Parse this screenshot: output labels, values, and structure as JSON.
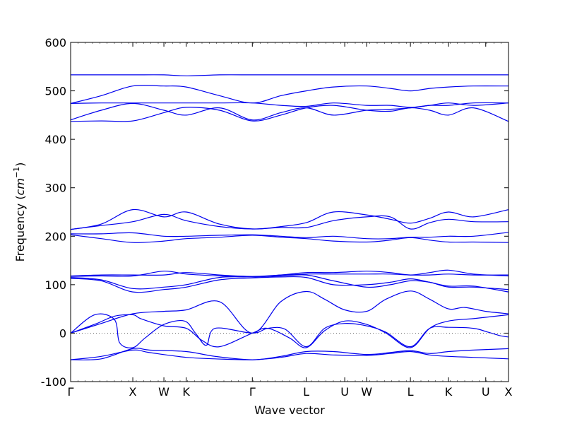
{
  "chart_data": {
    "type": "line",
    "title": "",
    "xlabel": "Wave vector",
    "ylabel": "Frequency (cm⁻¹)",
    "ylabel_parts": {
      "prefix": "Frequency (",
      "unit_base": "cm",
      "unit_exp": "−1",
      "suffix": ")"
    },
    "ylim": [
      -100,
      600
    ],
    "yticks": [
      -100,
      0,
      100,
      200,
      300,
      400,
      500,
      600
    ],
    "xlim": [
      0,
      1
    ],
    "high_symmetry_points": [
      {
        "label": "Γ",
        "x": 0.0
      },
      {
        "label": "X",
        "x": 0.142
      },
      {
        "label": "W",
        "x": 0.213
      },
      {
        "label": "K",
        "x": 0.264
      },
      {
        "label": "Γ",
        "x": 0.415
      },
      {
        "label": "L",
        "x": 0.538
      },
      {
        "label": "U",
        "x": 0.626
      },
      {
        "label": "W",
        "x": 0.676
      },
      {
        "label": "L",
        "x": 0.776
      },
      {
        "label": "K",
        "x": 0.863
      },
      {
        "label": "U",
        "x": 0.948
      },
      {
        "label": "X",
        "x": 1.0
      }
    ],
    "zero_line": {
      "y": 0,
      "style": "dotted"
    },
    "grid": false,
    "legend": false,
    "series_color": "#0000ee",
    "series": [
      {
        "x": [
          0.0,
          0.07,
          0.142,
          0.18,
          0.264,
          0.33,
          0.415,
          0.48,
          0.538,
          0.6,
          0.676,
          0.73,
          0.776,
          0.82,
          0.863,
          0.92,
          1.0
        ],
        "y": [
          -55,
          -53,
          -32,
          -35,
          -38,
          -48,
          -55,
          -48,
          -38,
          -38,
          -44,
          -40,
          -36,
          -42,
          -38,
          -35,
          -32
        ]
      },
      {
        "x": [
          0.0,
          0.07,
          0.142,
          0.18,
          0.264,
          0.33,
          0.415,
          0.48,
          0.538,
          0.6,
          0.676,
          0.73,
          0.776,
          0.82,
          0.863,
          0.92,
          1.0
        ],
        "y": [
          -55,
          -48,
          -35,
          -40,
          -50,
          -53,
          -55,
          -50,
          -42,
          -45,
          -46,
          -42,
          -38,
          -45,
          -48,
          -50,
          -53
        ]
      },
      {
        "x": [
          0.0,
          0.06,
          0.1,
          0.142,
          0.16,
          0.213,
          0.264,
          0.3,
          0.34,
          0.415,
          0.45,
          0.5,
          0.538,
          0.58,
          0.626,
          0.676,
          0.72,
          0.776,
          0.82,
          0.863,
          0.92,
          1.0
        ],
        "y": [
          0,
          20,
          35,
          38,
          30,
          15,
          10,
          -15,
          -28,
          0,
          10,
          -10,
          -30,
          5,
          25,
          18,
          0,
          -30,
          10,
          25,
          30,
          38
        ]
      },
      {
        "x": [
          0.0,
          0.055,
          0.1,
          0.112,
          0.142,
          0.17,
          0.213,
          0.26,
          0.285,
          0.31,
          0.33,
          0.415,
          0.45,
          0.49,
          0.538,
          0.58,
          0.626,
          0.676,
          0.72,
          0.776,
          0.82,
          0.863,
          0.92,
          0.95,
          0.98,
          1.0
        ],
        "y": [
          0,
          38,
          28,
          -20,
          -30,
          -10,
          18,
          25,
          0,
          -25,
          10,
          0,
          10,
          8,
          -28,
          10,
          20,
          15,
          2,
          -28,
          10,
          12,
          10,
          3,
          -5,
          -8
        ]
      },
      {
        "x": [
          0.0,
          0.07,
          0.142,
          0.213,
          0.264,
          0.34,
          0.415,
          0.48,
          0.538,
          0.58,
          0.626,
          0.676,
          0.72,
          0.776,
          0.82,
          0.863,
          0.9,
          0.948,
          1.0
        ],
        "y": [
          0,
          20,
          40,
          45,
          48,
          65,
          0,
          65,
          86,
          70,
          48,
          45,
          70,
          87,
          70,
          50,
          53,
          45,
          40
        ]
      },
      {
        "x": [
          0.0,
          0.07,
          0.142,
          0.213,
          0.264,
          0.34,
          0.415,
          0.48,
          0.538,
          0.6,
          0.676,
          0.73,
          0.776,
          0.82,
          0.863,
          0.92,
          1.0
        ],
        "y": [
          115,
          110,
          92,
          95,
          100,
          115,
          116,
          118,
          120,
          108,
          95,
          100,
          108,
          105,
          95,
          95,
          90
        ]
      },
      {
        "x": [
          0.0,
          0.07,
          0.142,
          0.213,
          0.264,
          0.34,
          0.415,
          0.48,
          0.538,
          0.6,
          0.676,
          0.73,
          0.776,
          0.82,
          0.863,
          0.92,
          1.0
        ],
        "y": [
          113,
          108,
          85,
          90,
          95,
          110,
          114,
          116,
          115,
          100,
          100,
          105,
          112,
          105,
          97,
          97,
          85
        ]
      },
      {
        "x": [
          0.0,
          0.07,
          0.142,
          0.213,
          0.264,
          0.34,
          0.415,
          0.48,
          0.538,
          0.6,
          0.676,
          0.73,
          0.776,
          0.82,
          0.863,
          0.92,
          1.0
        ],
        "y": [
          117,
          118,
          118,
          128,
          122,
          118,
          116,
          120,
          125,
          125,
          128,
          125,
          120,
          125,
          130,
          122,
          118
        ]
      },
      {
        "x": [
          0.0,
          0.07,
          0.142,
          0.213,
          0.264,
          0.34,
          0.415,
          0.48,
          0.538,
          0.6,
          0.676,
          0.73,
          0.776,
          0.82,
          0.863,
          0.92,
          1.0
        ],
        "y": [
          118,
          120,
          120,
          120,
          125,
          120,
          117,
          120,
          122,
          122,
          122,
          122,
          120,
          120,
          122,
          120,
          120
        ]
      },
      {
        "x": [
          0.0,
          0.07,
          0.142,
          0.213,
          0.264,
          0.34,
          0.415,
          0.48,
          0.538,
          0.6,
          0.676,
          0.73,
          0.776,
          0.82,
          0.863,
          0.92,
          1.0
        ],
        "y": [
          203,
          195,
          187,
          190,
          195,
          198,
          202,
          198,
          195,
          190,
          188,
          192,
          197,
          192,
          188,
          188,
          187
        ]
      },
      {
        "x": [
          0.0,
          0.07,
          0.142,
          0.213,
          0.264,
          0.34,
          0.415,
          0.48,
          0.538,
          0.6,
          0.676,
          0.73,
          0.776,
          0.82,
          0.863,
          0.92,
          1.0
        ],
        "y": [
          205,
          205,
          207,
          200,
          200,
          202,
          203,
          200,
          197,
          200,
          195,
          195,
          198,
          198,
          200,
          200,
          208
        ]
      },
      {
        "x": [
          0.0,
          0.07,
          0.142,
          0.213,
          0.264,
          0.34,
          0.415,
          0.48,
          0.538,
          0.6,
          0.676,
          0.73,
          0.776,
          0.82,
          0.863,
          0.92,
          1.0
        ],
        "y": [
          214,
          225,
          255,
          240,
          250,
          225,
          215,
          220,
          228,
          250,
          244,
          235,
          227,
          237,
          250,
          240,
          255
        ]
      },
      {
        "x": [
          0.0,
          0.07,
          0.142,
          0.213,
          0.264,
          0.34,
          0.415,
          0.48,
          0.538,
          0.6,
          0.676,
          0.73,
          0.776,
          0.82,
          0.863,
          0.92,
          1.0
        ],
        "y": [
          214,
          222,
          230,
          245,
          232,
          220,
          215,
          218,
          218,
          232,
          240,
          240,
          215,
          228,
          235,
          230,
          230
        ]
      },
      {
        "x": [
          0.0,
          0.07,
          0.142,
          0.213,
          0.264,
          0.34,
          0.415,
          0.48,
          0.538,
          0.6,
          0.676,
          0.73,
          0.776,
          0.82,
          0.863,
          0.92,
          1.0
        ],
        "y": [
          437,
          438,
          438,
          455,
          466,
          460,
          438,
          450,
          465,
          470,
          460,
          458,
          465,
          460,
          450,
          465,
          437
        ]
      },
      {
        "x": [
          0.0,
          0.07,
          0.142,
          0.213,
          0.264,
          0.34,
          0.415,
          0.48,
          0.538,
          0.6,
          0.676,
          0.73,
          0.776,
          0.82,
          0.863,
          0.92,
          1.0
        ],
        "y": [
          440,
          460,
          474,
          460,
          450,
          465,
          440,
          455,
          465,
          450,
          460,
          462,
          465,
          470,
          475,
          470,
          475
        ]
      },
      {
        "x": [
          0.0,
          0.07,
          0.142,
          0.213,
          0.264,
          0.34,
          0.415,
          0.48,
          0.538,
          0.6,
          0.676,
          0.73,
          0.776,
          0.82,
          0.863,
          0.92,
          1.0
        ],
        "y": [
          474,
          475,
          475,
          475,
          475,
          475,
          475,
          470,
          468,
          475,
          470,
          470,
          466,
          470,
          470,
          475,
          475
        ]
      },
      {
        "x": [
          0.0,
          0.07,
          0.142,
          0.213,
          0.264,
          0.34,
          0.415,
          0.48,
          0.538,
          0.6,
          0.676,
          0.73,
          0.776,
          0.82,
          0.863,
          0.92,
          1.0
        ],
        "y": [
          474,
          490,
          510,
          510,
          508,
          490,
          475,
          490,
          500,
          508,
          510,
          505,
          500,
          505,
          508,
          510,
          510
        ]
      },
      {
        "x": [
          0.0,
          0.07,
          0.142,
          0.213,
          0.264,
          0.34,
          0.415,
          0.48,
          0.538,
          0.6,
          0.676,
          0.73,
          0.776,
          0.82,
          0.863,
          0.92,
          1.0
        ],
        "y": [
          533,
          533,
          533,
          533,
          531,
          533,
          533,
          533,
          533,
          533,
          533,
          533,
          533,
          533,
          533,
          533,
          533
        ]
      }
    ]
  }
}
